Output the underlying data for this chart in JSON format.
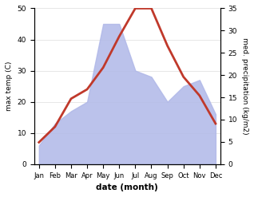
{
  "months": [
    "Jan",
    "Feb",
    "Mar",
    "Apr",
    "May",
    "Jun",
    "Jul",
    "Aug",
    "Sep",
    "Oct",
    "Nov",
    "Dec"
  ],
  "temperature": [
    7,
    12,
    21,
    24,
    31,
    41,
    50,
    50,
    38,
    28,
    22,
    13
  ],
  "precipitation_left": [
    6,
    13,
    17,
    20,
    45,
    45,
    30,
    28,
    20,
    25,
    27,
    16
  ],
  "temp_color": "#c0392b",
  "precip_color": "#b0b8e8",
  "ylim_left": [
    0,
    50
  ],
  "ylim_right": [
    0,
    35
  ],
  "yticks_left": [
    0,
    10,
    20,
    30,
    40,
    50
  ],
  "yticks_right": [
    0,
    5,
    10,
    15,
    20,
    25,
    30,
    35
  ],
  "xlabel": "date (month)",
  "ylabel_left": "max temp (C)",
  "ylabel_right": "med. precipitation (kg/m2)",
  "temp_linewidth": 2.0,
  "bg_color": "#ffffff",
  "grid_color": "#dddddd"
}
